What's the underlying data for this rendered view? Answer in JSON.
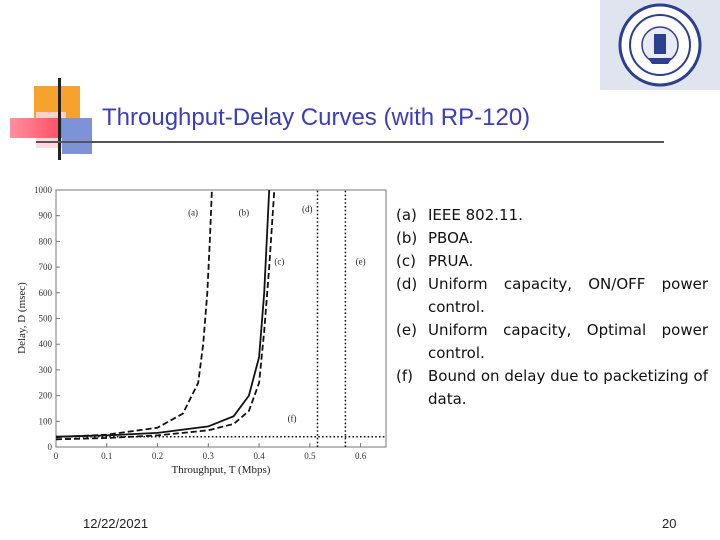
{
  "slide": {
    "title": "Throughput-Delay Curves (with RP-120)",
    "date": "12/22/2021",
    "page": "20"
  },
  "colors": {
    "title": "#3b3dbf",
    "accent_orange": "#f7a12e",
    "accent_red": "#ff4f62",
    "accent_blue": "#7e92d8"
  },
  "logo": {
    "name": "university-seal-icon"
  },
  "legend": [
    {
      "key": "(a)",
      "text": "IEEE 802.11."
    },
    {
      "key": "(b)",
      "text": "PBOA."
    },
    {
      "key": "(c)",
      "text": "PRUA."
    },
    {
      "key": "(d)",
      "text": "Uniform capacity, ON/OFF power control."
    },
    {
      "key": "(e)",
      "text": "Uniform capacity, Optimal power control."
    },
    {
      "key": "(f)",
      "text": "Bound on delay due to packetizing of data."
    }
  ],
  "chart_data": {
    "type": "line",
    "xlabel": "Throughput, T (Mbps)",
    "ylabel": "Delay, D (msec)",
    "xlim": [
      0,
      0.65
    ],
    "ylim": [
      0,
      1000
    ],
    "xticks": [
      "0",
      "0.1",
      "0.2",
      "0.3",
      "0.4",
      "0.5",
      "0.6"
    ],
    "yticks": [
      "0",
      "100",
      "200",
      "300",
      "400",
      "500",
      "600",
      "700",
      "800",
      "900",
      "1000"
    ],
    "grid": false,
    "legend_position": "right",
    "series": [
      {
        "name": "(a)",
        "style": "dashed",
        "x": [
          0,
          0.1,
          0.2,
          0.25,
          0.28,
          0.29,
          0.298,
          0.303,
          0.307
        ],
        "y": [
          38,
          48,
          75,
          130,
          250,
          400,
          600,
          800,
          1000
        ]
      },
      {
        "name": "(b)",
        "style": "solid",
        "x": [
          0,
          0.1,
          0.2,
          0.3,
          0.35,
          0.38,
          0.4,
          0.41,
          0.42
        ],
        "y": [
          40,
          45,
          55,
          80,
          120,
          200,
          350,
          600,
          1000
        ]
      },
      {
        "name": "(c)",
        "style": "dashed",
        "x": [
          0,
          0.1,
          0.2,
          0.3,
          0.35,
          0.38,
          0.4,
          0.41,
          0.42,
          0.43
        ],
        "y": [
          30,
          35,
          45,
          65,
          90,
          140,
          250,
          450,
          700,
          1000
        ]
      },
      {
        "name": "(d)",
        "style": "dotted",
        "x": [
          0.515,
          0.515
        ],
        "y": [
          0,
          1000
        ]
      },
      {
        "name": "(e)",
        "style": "dotted",
        "x": [
          0.57,
          0.57
        ],
        "y": [
          0,
          1000
        ]
      },
      {
        "name": "(f)",
        "style": "dotted",
        "x": [
          0,
          0.65
        ],
        "y": [
          40,
          40
        ]
      }
    ],
    "annotations": [
      {
        "text": "(a)",
        "x": 0.27,
        "y": 900
      },
      {
        "text": "(b)",
        "x": 0.37,
        "y": 900
      },
      {
        "text": "(d)",
        "x": 0.495,
        "y": 915
      },
      {
        "text": "(c)",
        "x": 0.44,
        "y": 710
      },
      {
        "text": "(e)",
        "x": 0.6,
        "y": 710
      },
      {
        "text": "(f)",
        "x": 0.465,
        "y": 100
      }
    ]
  }
}
